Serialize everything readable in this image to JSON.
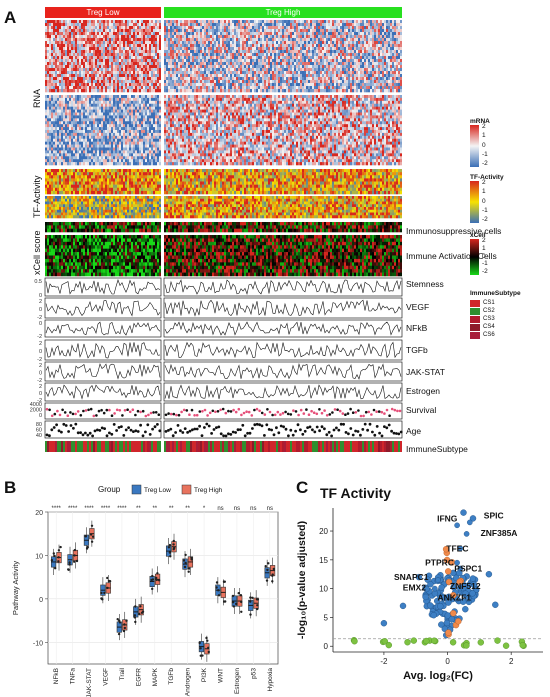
{
  "panel_labels": {
    "a": "A",
    "b": "B",
    "c": "C"
  },
  "panel_a": {
    "groups": [
      {
        "name": "Treg Low",
        "color": "#e8231c"
      },
      {
        "name": "Treg High",
        "color": "#27e01f"
      }
    ],
    "section_labels": {
      "rna": "RNA",
      "tf": "TF-Activity",
      "xcell": "xCell score"
    },
    "row_labels": [
      "Immunosuppressive cells",
      "Immune Activation Cells",
      "Stemness",
      "VEGF",
      "NFkB",
      "TGFb",
      "JAK-STAT",
      "Estrogen",
      "Survival",
      "Age",
      "ImmuneSubtype"
    ],
    "track_ticks": {
      "stemness": [
        "0.5",
        "0"
      ],
      "vegf": [
        "2",
        "0",
        "-2"
      ],
      "nfkb": [
        "0",
        "-2"
      ],
      "tgfb": [
        "2",
        "0",
        "-2"
      ],
      "jakstat": [
        "2",
        "0",
        "-2"
      ],
      "estrogen": [
        "2",
        "0",
        "-2"
      ],
      "survival": [
        "4000",
        "2000",
        "0"
      ],
      "age": [
        "80",
        "60",
        "40"
      ]
    },
    "legends": {
      "mrna": {
        "title": "mRNA",
        "ticks": [
          "2",
          "1",
          "0",
          "-1",
          "-2"
        ]
      },
      "tf": {
        "title": "TF-Activity",
        "ticks": [
          "2",
          "1",
          "0",
          "-1",
          "-2"
        ]
      },
      "xcell": {
        "title": "xCell",
        "ticks": [
          "2",
          "1",
          "0",
          "-1",
          "-2"
        ]
      },
      "subtype": {
        "title": "ImmuneSubtype",
        "items": [
          {
            "label": "CS1",
            "color": "#d0262b"
          },
          {
            "label": "CS2",
            "color": "#2f8f2f"
          },
          {
            "label": "CS3",
            "color": "#b01c2e"
          },
          {
            "label": "CS4",
            "color": "#8e1b2a"
          },
          {
            "label": "CS6",
            "color": "#a81e3a"
          }
        ]
      }
    },
    "colors": {
      "blue": "#3b6fb6",
      "white": "#f4f4f4",
      "red": "#d7261e",
      "yellow": "#f7e200",
      "green": "#18d818",
      "black": "#000000",
      "pink": "#e6507a"
    }
  },
  "chart_data": [
    {
      "type": "box",
      "legend_title": "Group",
      "ylabel": "Pathway Activity",
      "ylim": [
        -15,
        20
      ],
      "yticks": [
        -10,
        0,
        10,
        20
      ],
      "categories": [
        "NFkB",
        "TNFa",
        "JAK-STAT",
        "VEGF",
        "Trail",
        "EGFR",
        "MAPK",
        "TGFb",
        "Androgen",
        "PI3K",
        "WNT",
        "Estrogen",
        "p53",
        "Hypoxia"
      ],
      "significance": [
        "****",
        "****",
        "****",
        "****",
        "****",
        "**",
        "**",
        "**",
        "**",
        "*",
        "ns",
        "ns",
        "ns",
        "ns"
      ],
      "series": [
        {
          "name": "Treg Low",
          "color": "#3a78c0",
          "medians": [
            8.5,
            9.0,
            13.5,
            2.0,
            -6.5,
            -3.0,
            4.0,
            11.0,
            8.0,
            -11.0,
            2.0,
            -0.5,
            -1.5,
            6.0
          ]
        },
        {
          "name": "Treg High",
          "color": "#e8735e",
          "medians": [
            9.5,
            10.0,
            15.0,
            2.5,
            -6.0,
            -2.5,
            4.5,
            12.0,
            8.5,
            -11.5,
            1.5,
            -0.5,
            -1.0,
            6.5
          ]
        }
      ]
    },
    {
      "type": "scatter",
      "title": "TF Activity",
      "xlabel": "Avg. log₂(FC)",
      "ylabel": "-log₁₀(p-value adjusted)",
      "xlim": [
        -3.6,
        3.0
      ],
      "ylim": [
        -1,
        24
      ],
      "xticks": [
        -2,
        0,
        2
      ],
      "yticks": [
        0,
        5,
        10,
        15,
        20
      ],
      "threshold_y": 1.3,
      "colors": {
        "significant": "#3d7fc4",
        "nonsig": "#7dc241",
        "highlight": "#f08a4b"
      },
      "labeled_points": [
        {
          "label": "IFNG",
          "x": 0.3,
          "y": 21.0
        },
        {
          "label": "SPIC",
          "x": 0.7,
          "y": 21.5
        },
        {
          "label": "ZNF385A",
          "x": 0.6,
          "y": 19.5
        },
        {
          "label": "TFEC",
          "x": 0.4,
          "y": 17.0
        },
        {
          "label": "PTPRC",
          "x": 0.3,
          "y": 14.5
        },
        {
          "label": "PSPC1",
          "x": 0.4,
          "y": 13.5
        },
        {
          "label": "SNAPC1",
          "x": -0.3,
          "y": 11.5
        },
        {
          "label": "ZNF512",
          "x": 0.2,
          "y": 10.5
        },
        {
          "label": "EMX2",
          "x": -0.4,
          "y": 10.0
        },
        {
          "label": "ANKZF1",
          "x": 0.0,
          "y": 8.5
        }
      ]
    }
  ]
}
